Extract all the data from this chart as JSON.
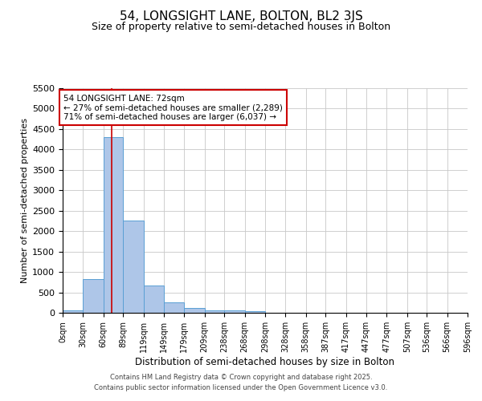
{
  "title": "54, LONGSIGHT LANE, BOLTON, BL2 3JS",
  "subtitle": "Size of property relative to semi-detached houses in Bolton",
  "xlabel": "Distribution of semi-detached houses by size in Bolton",
  "ylabel": "Number of semi-detached properties",
  "bin_edges": [
    0,
    30,
    60,
    89,
    119,
    149,
    179,
    209,
    238,
    268,
    298,
    328,
    358,
    387,
    417,
    447,
    477,
    507,
    536,
    566,
    596
  ],
  "bin_counts": [
    50,
    830,
    4300,
    2250,
    670,
    250,
    110,
    60,
    50,
    40,
    0,
    0,
    0,
    0,
    0,
    0,
    0,
    0,
    0,
    0
  ],
  "bar_color": "#aec6e8",
  "bar_edge_color": "#5a9fd4",
  "property_size": 72,
  "red_line_color": "#cc0000",
  "annotation_text": "54 LONGSIGHT LANE: 72sqm\n← 27% of semi-detached houses are smaller (2,289)\n71% of semi-detached houses are larger (6,037) →",
  "annotation_box_color": "#cc0000",
  "ylim": [
    0,
    5500
  ],
  "yticks": [
    0,
    500,
    1000,
    1500,
    2000,
    2500,
    3000,
    3500,
    4000,
    4500,
    5000,
    5500
  ],
  "background_color": "#ffffff",
  "grid_color": "#c8c8c8",
  "footer_line1": "Contains HM Land Registry data © Crown copyright and database right 2025.",
  "footer_line2": "Contains public sector information licensed under the Open Government Licence v3.0.",
  "title_fontsize": 11,
  "subtitle_fontsize": 9,
  "tick_labels": [
    "0sqm",
    "30sqm",
    "60sqm",
    "89sqm",
    "119sqm",
    "149sqm",
    "179sqm",
    "209sqm",
    "238sqm",
    "268sqm",
    "298sqm",
    "328sqm",
    "358sqm",
    "387sqm",
    "417sqm",
    "447sqm",
    "477sqm",
    "507sqm",
    "536sqm",
    "566sqm",
    "596sqm"
  ]
}
